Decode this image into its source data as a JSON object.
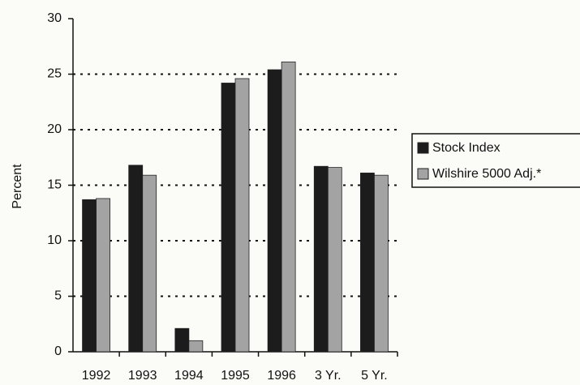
{
  "chart_data": {
    "type": "bar",
    "categories": [
      "1992",
      "1993",
      "1994",
      "1995",
      "1996",
      "3 Yr.",
      "5 Yr."
    ],
    "series": [
      {
        "name": "Stock Index",
        "color": "#1c1c1c",
        "values": [
          13.7,
          16.8,
          2.1,
          24.2,
          25.4,
          16.7,
          16.1
        ]
      },
      {
        "name": "Wilshire 5000 Adj.*",
        "color": "#a3a3a3",
        "values": [
          13.8,
          15.9,
          1.0,
          24.6,
          26.1,
          16.6,
          15.9
        ]
      }
    ],
    "y_label": "Percent",
    "ylim": [
      0,
      30
    ],
    "yticks": [
      0,
      5,
      10,
      15,
      20,
      25,
      30
    ],
    "grid": true
  }
}
